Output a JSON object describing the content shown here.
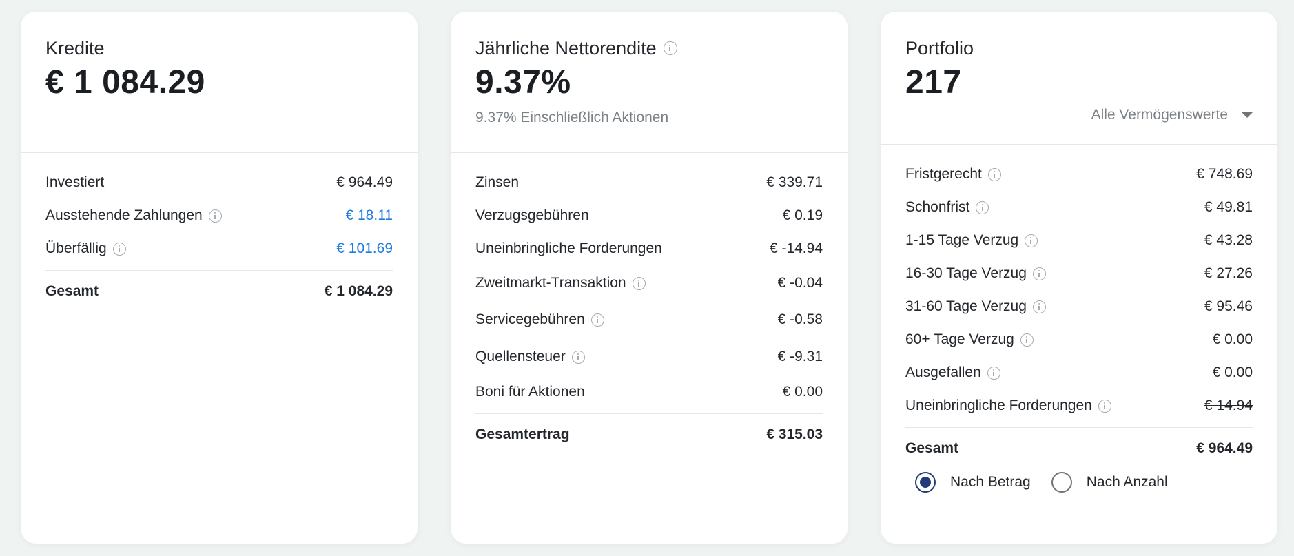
{
  "kredite": {
    "title": "Kredite",
    "amount": "€ 1 084.29",
    "rows": [
      {
        "label": "Investiert",
        "value": "€ 964.49"
      },
      {
        "label": "Ausstehende Zahlungen",
        "value": "€ 18.11"
      },
      {
        "label": "Überfällig",
        "value": "€ 101.69"
      }
    ],
    "total": {
      "label": "Gesamt",
      "value": "€ 1 084.29"
    }
  },
  "rendite": {
    "title": "Jährliche Nettorendite",
    "amount": "9.37%",
    "subtitle": "9.37% Einschließlich Aktionen",
    "rows": [
      {
        "label": "Zinsen",
        "value": "€ 339.71"
      },
      {
        "label": "Verzugsgebühren",
        "value": "€ 0.19"
      },
      {
        "label": "Uneinbringliche Forderungen",
        "value": "€ -14.94"
      },
      {
        "label": "Zweitmarkt-Transaktion",
        "value": "€ -0.04"
      },
      {
        "label": "Servicegebühren",
        "value": "€ -0.58"
      },
      {
        "label": "Quellensteuer",
        "value": "€ -9.31"
      },
      {
        "label": "Boni für Aktionen",
        "value": "€ 0.00"
      }
    ],
    "total": {
      "label": "Gesamtertrag",
      "value": "€ 315.03"
    }
  },
  "portfolio": {
    "title": "Portfolio",
    "amount": "217",
    "filter": "Alle Vermögenswerte",
    "rows": [
      {
        "label": "Fristgerecht",
        "value": "€ 748.69"
      },
      {
        "label": "Schonfrist",
        "value": "€ 49.81"
      },
      {
        "label": "1-15 Tage Verzug",
        "value": "€ 43.28"
      },
      {
        "label": "16-30 Tage Verzug",
        "value": "€ 27.26"
      },
      {
        "label": "31-60 Tage Verzug",
        "value": "€ 95.46"
      },
      {
        "label": "60+ Tage Verzug",
        "value": "€ 0.00"
      },
      {
        "label": "Ausgefallen",
        "value": "€ 0.00"
      },
      {
        "label": "Uneinbringliche Forderungen",
        "value": "€ 14.94"
      }
    ],
    "total": {
      "label": "Gesamt",
      "value": "€ 964.49"
    },
    "radio_options": {
      "by_amount": "Nach Betrag",
      "by_count": "Nach Anzahl",
      "selected": "by_amount"
    }
  },
  "colors": {
    "link_blue": "#1e7be0",
    "radio_active": "#223a7a",
    "background": "#eff3f2"
  }
}
